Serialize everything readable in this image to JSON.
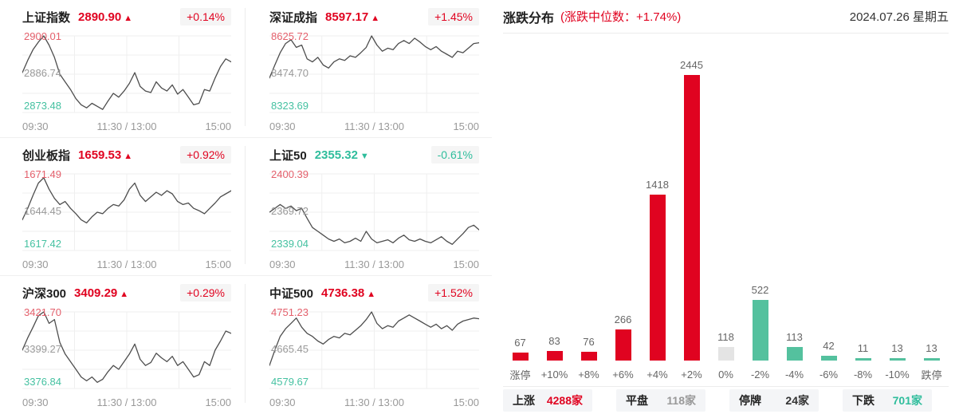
{
  "colors": {
    "up_red": "#e00320",
    "down_green_text": "#2fbd9c",
    "bar_up": "#e00320",
    "bar_flat": "#e4e4e4",
    "bar_down": "#54c19e",
    "axis_max_red": "#e4606c",
    "axis_min_green": "#45c1a1",
    "axis_mid_gray": "#9a9a9a",
    "line_gray": "#4d4d4d",
    "badge_bg": "#f5f5f5",
    "summary_box_bg": "#f4f5f7"
  },
  "distribution_header": {
    "title": "涨跌分布",
    "subtitle": "(涨跌中位数：+1.74%)",
    "date": "2024.07.26 星期五"
  },
  "chart_data": [
    {
      "id": "distribution",
      "type": "bar",
      "title": "涨跌分布",
      "median_change": "+1.74%",
      "categories": [
        "涨停",
        "+10%",
        "+8%",
        "+6%",
        "+4%",
        "+2%",
        "0%",
        "-2%",
        "-4%",
        "-6%",
        "-8%",
        "-10%",
        "跌停"
      ],
      "values": [
        67,
        83,
        76,
        266,
        1418,
        2445,
        118,
        522,
        113,
        42,
        11,
        13,
        13
      ],
      "bar_types": [
        "up",
        "up",
        "up",
        "up",
        "up",
        "up",
        "flat",
        "down",
        "down",
        "down",
        "down",
        "down",
        "down"
      ],
      "ylim": [
        0,
        2500
      ],
      "grid": false,
      "legend": false,
      "value_labels": true
    },
    {
      "id": "sh-composite",
      "type": "line",
      "title": "上证指数",
      "value": "2890.90",
      "arrow": "▲",
      "dir": "up",
      "change": "+0.14%",
      "y_max": "2900.01",
      "y_mid": "2886.74",
      "y_min": "2873.48",
      "x_labels": [
        "09:30",
        "11:30 / 13:00",
        "15:00"
      ],
      "series_norm": [
        0.52,
        0.68,
        0.82,
        0.92,
        1.0,
        0.88,
        0.72,
        0.5,
        0.4,
        0.3,
        0.18,
        0.1,
        0.06,
        0.12,
        0.08,
        0.04,
        0.15,
        0.25,
        0.2,
        0.28,
        0.38,
        0.52,
        0.34,
        0.28,
        0.26,
        0.4,
        0.32,
        0.28,
        0.36,
        0.24,
        0.3,
        0.2,
        0.1,
        0.12,
        0.3,
        0.28,
        0.45,
        0.6,
        0.7,
        0.66
      ]
    },
    {
      "id": "sz-component",
      "type": "line",
      "title": "深证成指",
      "value": "8597.17",
      "arrow": "▲",
      "dir": "up",
      "change": "+1.45%",
      "y_max": "8625.72",
      "y_mid": "8474.70",
      "y_min": "8323.69",
      "x_labels": [
        "09:30",
        "11:30 / 13:00",
        "15:00"
      ],
      "series_norm": [
        0.45,
        0.62,
        0.78,
        0.9,
        0.95,
        0.85,
        0.88,
        0.7,
        0.66,
        0.72,
        0.62,
        0.58,
        0.66,
        0.7,
        0.68,
        0.74,
        0.72,
        0.78,
        0.85,
        1.0,
        0.88,
        0.8,
        0.84,
        0.82,
        0.9,
        0.94,
        0.9,
        0.97,
        0.92,
        0.86,
        0.82,
        0.86,
        0.8,
        0.76,
        0.72,
        0.8,
        0.78,
        0.84,
        0.9,
        0.91
      ]
    },
    {
      "id": "chinext",
      "type": "line",
      "title": "创业板指",
      "value": "1659.53",
      "arrow": "▲",
      "dir": "up",
      "change": "+0.92%",
      "y_max": "1671.49",
      "y_mid": "1644.45",
      "y_min": "1617.42",
      "x_labels": [
        "09:30",
        "11:30 / 13:00",
        "15:00"
      ],
      "series_norm": [
        0.4,
        0.55,
        0.72,
        0.88,
        0.95,
        0.8,
        0.68,
        0.6,
        0.64,
        0.55,
        0.48,
        0.4,
        0.36,
        0.44,
        0.5,
        0.48,
        0.55,
        0.6,
        0.58,
        0.66,
        0.8,
        0.88,
        0.72,
        0.64,
        0.7,
        0.76,
        0.72,
        0.78,
        0.74,
        0.64,
        0.6,
        0.62,
        0.55,
        0.52,
        0.48,
        0.55,
        0.62,
        0.7,
        0.74,
        0.78
      ]
    },
    {
      "id": "sse-50",
      "type": "line",
      "title": "上证50",
      "value": "2355.32",
      "arrow": "▼",
      "dir": "down",
      "change": "-0.61%",
      "y_max": "2400.39",
      "y_mid": "2369.72",
      "y_min": "2339.04",
      "x_labels": [
        "09:30",
        "11:30 / 13:00",
        "15:00"
      ],
      "series_norm": [
        0.5,
        0.55,
        0.6,
        0.55,
        0.58,
        0.52,
        0.55,
        0.42,
        0.3,
        0.25,
        0.2,
        0.15,
        0.12,
        0.15,
        0.1,
        0.12,
        0.16,
        0.12,
        0.25,
        0.15,
        0.1,
        0.12,
        0.14,
        0.1,
        0.16,
        0.2,
        0.14,
        0.12,
        0.15,
        0.12,
        0.1,
        0.14,
        0.18,
        0.12,
        0.08,
        0.15,
        0.22,
        0.3,
        0.33,
        0.27
      ]
    },
    {
      "id": "csi-300",
      "type": "line",
      "title": "沪深300",
      "value": "3409.29",
      "arrow": "▲",
      "dir": "up",
      "change": "+0.29%",
      "y_max": "3421.70",
      "y_mid": "3399.27",
      "y_min": "3376.84",
      "x_labels": [
        "09:30",
        "11:30 / 13:00",
        "15:00"
      ],
      "series_norm": [
        0.5,
        0.66,
        0.8,
        0.95,
        1.0,
        0.85,
        0.9,
        0.6,
        0.45,
        0.35,
        0.25,
        0.15,
        0.1,
        0.15,
        0.08,
        0.12,
        0.22,
        0.3,
        0.25,
        0.35,
        0.45,
        0.58,
        0.38,
        0.3,
        0.34,
        0.46,
        0.4,
        0.35,
        0.42,
        0.3,
        0.35,
        0.25,
        0.15,
        0.18,
        0.35,
        0.3,
        0.5,
        0.62,
        0.75,
        0.72
      ]
    },
    {
      "id": "csi-500",
      "type": "line",
      "title": "中证500",
      "value": "4736.38",
      "arrow": "▲",
      "dir": "up",
      "change": "+1.52%",
      "y_max": "4751.23",
      "y_mid": "4665.45",
      "y_min": "4579.67",
      "x_labels": [
        "09:30",
        "11:30 / 13:00",
        "15:00"
      ],
      "series_norm": [
        0.3,
        0.5,
        0.68,
        0.78,
        0.85,
        0.92,
        0.8,
        0.72,
        0.68,
        0.62,
        0.58,
        0.64,
        0.68,
        0.66,
        0.72,
        0.7,
        0.76,
        0.82,
        0.9,
        1.0,
        0.85,
        0.78,
        0.82,
        0.8,
        0.88,
        0.92,
        0.96,
        0.92,
        0.88,
        0.84,
        0.8,
        0.84,
        0.78,
        0.82,
        0.76,
        0.84,
        0.88,
        0.9,
        0.92,
        0.91
      ]
    }
  ],
  "summary": [
    {
      "key": "up",
      "label": "上涨",
      "value": "4288家",
      "color": "#e00320"
    },
    {
      "key": "flat",
      "label": "平盘",
      "value": "118家",
      "color": "#999999"
    },
    {
      "key": "halt",
      "label": "停牌",
      "value": "24家",
      "color": "#333333"
    },
    {
      "key": "down",
      "label": "下跌",
      "value": "701家",
      "color": "#2fbd9c"
    }
  ]
}
